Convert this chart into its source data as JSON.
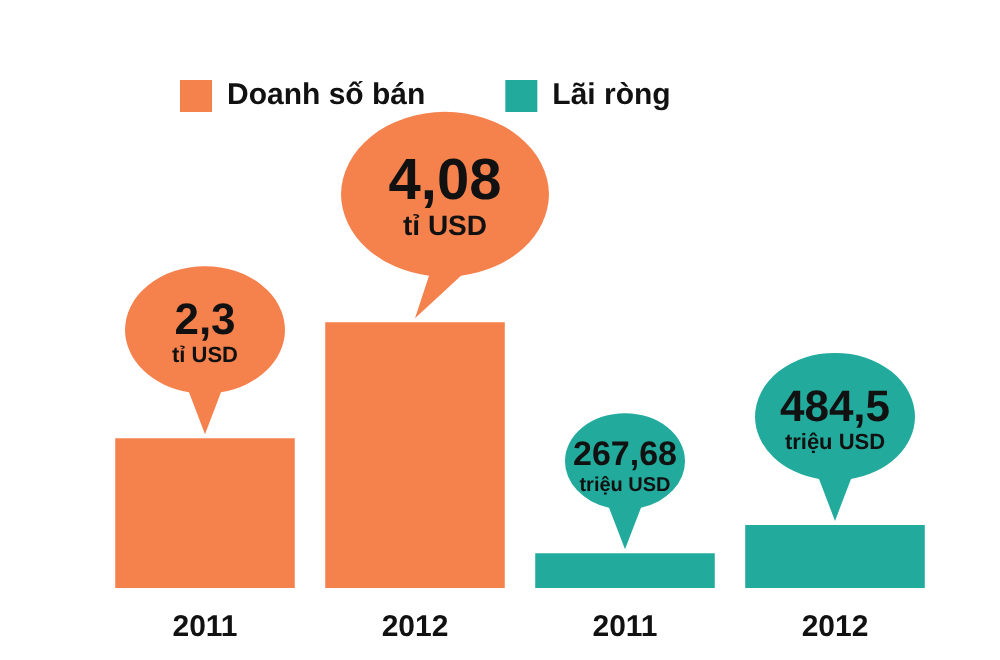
{
  "chart_data": {
    "type": "bar",
    "categories": [
      "2011",
      "2012",
      "2011",
      "2012"
    ],
    "series": [
      {
        "name": "Doanh số bán",
        "color": "#f5814d",
        "values": [
          2.3,
          4.08,
          null,
          null
        ],
        "value_labels": [
          "2,3 tỉ USD",
          "4,08 tỉ USD",
          null,
          null
        ]
      },
      {
        "name": "Lãi ròng",
        "color": "#22ab9d",
        "axis": "y2",
        "values": [
          null,
          null,
          267.68,
          484.5
        ],
        "value_labels": [
          null,
          null,
          "267,68 triệu USD",
          "484,5 triệu USD"
        ]
      }
    ],
    "tick_labels": "x",
    "legend": "top"
  }
}
